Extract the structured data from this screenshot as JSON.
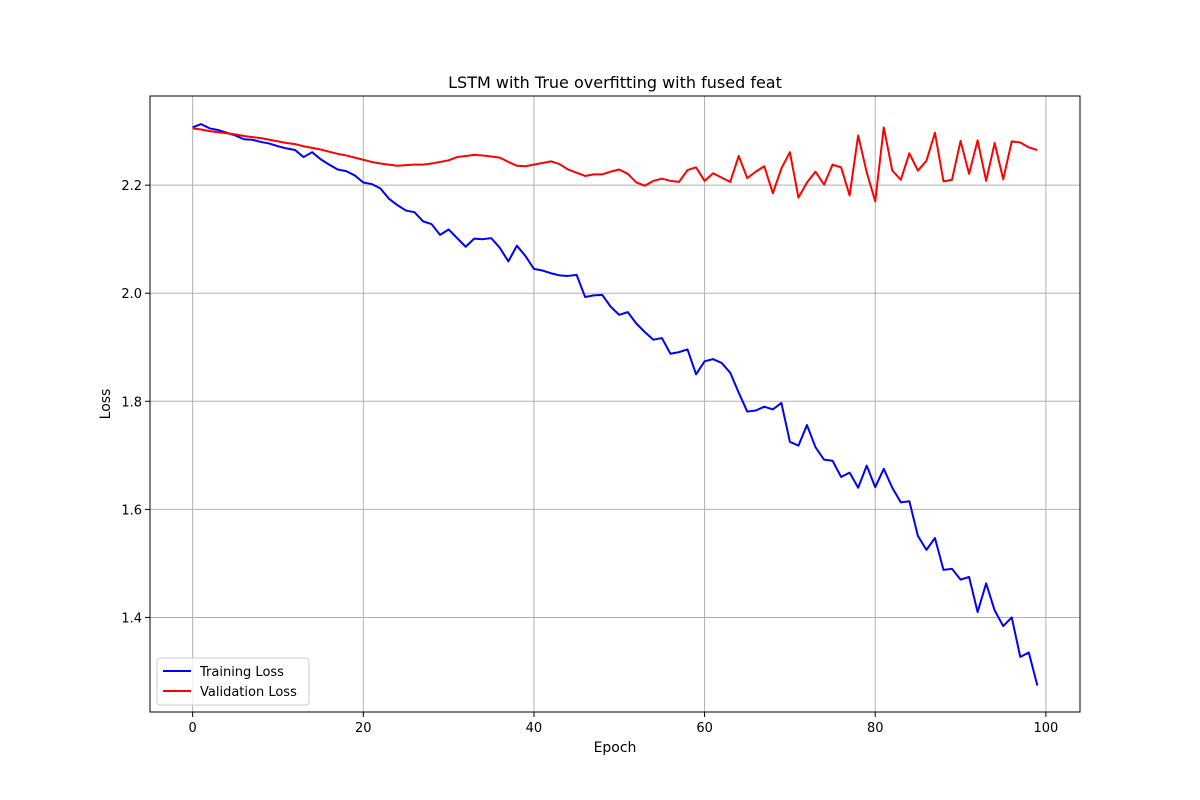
{
  "chart_data": {
    "type": "line",
    "title": "LSTM with True overfitting with fused feat",
    "xlabel": "Epoch",
    "ylabel": "Loss",
    "xlim": [
      -5,
      104
    ],
    "ylim": [
      1.225,
      2.365
    ],
    "xticks": [
      0,
      20,
      40,
      60,
      80,
      100
    ],
    "yticks": [
      1.4,
      1.6,
      1.8,
      2.0,
      2.2
    ],
    "xtick_labels": [
      "0",
      "20",
      "40",
      "60",
      "80",
      "100"
    ],
    "ytick_labels": [
      "1.4",
      "1.6",
      "1.8",
      "2.0",
      "2.2"
    ],
    "grid": true,
    "legend_position": "lower-left",
    "series": [
      {
        "name": "Training Loss",
        "color": "#0000ff",
        "x": [
          0,
          1,
          2,
          3,
          4,
          5,
          6,
          7,
          8,
          9,
          10,
          11,
          12,
          13,
          14,
          15,
          16,
          17,
          18,
          19,
          20,
          21,
          22,
          23,
          24,
          25,
          26,
          27,
          28,
          29,
          30,
          31,
          32,
          33,
          34,
          35,
          36,
          37,
          38,
          39,
          40,
          41,
          42,
          43,
          44,
          45,
          46,
          47,
          48,
          49,
          50,
          51,
          52,
          53,
          54,
          55,
          56,
          57,
          58,
          59,
          60,
          61,
          62,
          63,
          64,
          65,
          66,
          67,
          68,
          69,
          70,
          71,
          72,
          73,
          74,
          75,
          76,
          77,
          78,
          79,
          80,
          81,
          82,
          83,
          84,
          85,
          86,
          87,
          88,
          89,
          90,
          91,
          92,
          93,
          94,
          95,
          96,
          97,
          98,
          99
        ],
        "values": [
          2.307,
          2.313,
          2.305,
          2.302,
          2.297,
          2.292,
          2.285,
          2.284,
          2.28,
          2.277,
          2.272,
          2.268,
          2.265,
          2.252,
          2.261,
          2.248,
          2.238,
          2.229,
          2.226,
          2.218,
          2.205,
          2.202,
          2.194,
          2.175,
          2.163,
          2.153,
          2.15,
          2.133,
          2.128,
          2.108,
          2.118,
          2.102,
          2.086,
          2.101,
          2.1,
          2.102,
          2.084,
          2.059,
          2.088,
          2.069,
          2.045,
          2.042,
          2.037,
          2.033,
          2.032,
          2.034,
          1.993,
          1.996,
          1.997,
          1.975,
          1.96,
          1.965,
          1.944,
          1.928,
          1.914,
          1.917,
          1.888,
          1.891,
          1.896,
          1.85,
          1.874,
          1.878,
          1.871,
          1.853,
          1.816,
          1.781,
          1.783,
          1.79,
          1.785,
          1.797,
          1.725,
          1.718,
          1.756,
          1.715,
          1.692,
          1.69,
          1.66,
          1.668,
          1.64,
          1.681,
          1.641,
          1.675,
          1.64,
          1.613,
          1.615,
          1.551,
          1.525,
          1.547,
          1.488,
          1.49,
          1.47,
          1.475,
          1.41,
          1.463,
          1.413,
          1.384,
          1.4,
          1.327,
          1.335,
          1.274
        ]
      },
      {
        "name": "Validation Loss",
        "color": "#ff0000",
        "x": [
          0,
          1,
          2,
          3,
          4,
          5,
          6,
          7,
          8,
          9,
          10,
          11,
          12,
          13,
          14,
          15,
          16,
          17,
          18,
          19,
          20,
          21,
          22,
          23,
          24,
          25,
          26,
          27,
          28,
          29,
          30,
          31,
          32,
          33,
          34,
          35,
          36,
          37,
          38,
          39,
          40,
          41,
          42,
          43,
          44,
          45,
          46,
          47,
          48,
          49,
          50,
          51,
          52,
          53,
          54,
          55,
          56,
          57,
          58,
          59,
          60,
          61,
          62,
          63,
          64,
          65,
          66,
          67,
          68,
          69,
          70,
          71,
          72,
          73,
          74,
          75,
          76,
          77,
          78,
          79,
          80,
          81,
          82,
          83,
          84,
          85,
          86,
          87,
          88,
          89,
          90,
          91,
          92,
          93,
          94,
          95,
          96,
          97,
          98,
          99
        ],
        "values": [
          2.305,
          2.303,
          2.3,
          2.298,
          2.296,
          2.294,
          2.291,
          2.289,
          2.287,
          2.284,
          2.281,
          2.278,
          2.276,
          2.272,
          2.269,
          2.266,
          2.262,
          2.258,
          2.255,
          2.251,
          2.247,
          2.243,
          2.24,
          2.238,
          2.236,
          2.237,
          2.238,
          2.238,
          2.24,
          2.243,
          2.246,
          2.252,
          2.254,
          2.256,
          2.255,
          2.253,
          2.251,
          2.243,
          2.236,
          2.235,
          2.238,
          2.241,
          2.244,
          2.239,
          2.229,
          2.223,
          2.217,
          2.22,
          2.22,
          2.225,
          2.229,
          2.221,
          2.205,
          2.199,
          2.208,
          2.212,
          2.208,
          2.206,
          2.228,
          2.233,
          2.208,
          2.222,
          2.214,
          2.206,
          2.254,
          2.213,
          2.225,
          2.235,
          2.185,
          2.231,
          2.261,
          2.177,
          2.205,
          2.225,
          2.201,
          2.238,
          2.233,
          2.181,
          2.292,
          2.224,
          2.17,
          2.307,
          2.227,
          2.21,
          2.259,
          2.227,
          2.245,
          2.297,
          2.207,
          2.21,
          2.282,
          2.221,
          2.283,
          2.208,
          2.278,
          2.211,
          2.281,
          2.279,
          2.27,
          2.265
        ]
      }
    ]
  }
}
